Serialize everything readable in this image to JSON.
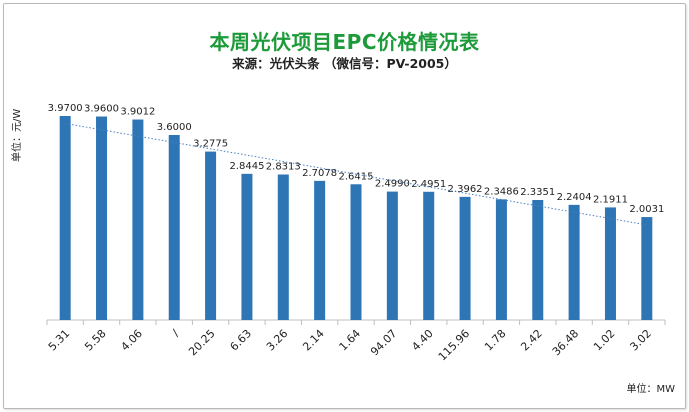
{
  "chart_data": {
    "type": "bar",
    "title": "本周光伏项目EPC价格情况表",
    "subtitle": "来源：光伏头条 （微信号：PV-2005）",
    "ylabel": "单位：元/W",
    "xunit": "单位：MW",
    "categories": [
      "5.31",
      "5.58",
      "4.06",
      "/",
      "20.25",
      "6.63",
      "3.26",
      "2.14",
      "1.64",
      "94.07",
      "4.40",
      "115.96",
      "1.78",
      "2.42",
      "36.48",
      "1.02",
      "3.02"
    ],
    "values": [
      3.97,
      3.96,
      3.9012,
      3.6,
      3.2775,
      2.8445,
      2.8313,
      2.7078,
      2.6415,
      2.499,
      2.4951,
      2.3962,
      2.3486,
      2.3351,
      2.2404,
      2.1911,
      2.0031
    ],
    "value_labels": [
      "3.9700",
      "3.9600",
      "3.9012",
      "3.6000",
      "3.2775",
      "2.8445",
      "2.8313",
      "2.7078",
      "2.6415",
      "2.4990",
      "2.4951",
      "2.3962",
      "2.3486",
      "2.3351",
      "2.2404",
      "2.1911",
      "2.0031"
    ],
    "trendline": "linear",
    "ylim": [
      0,
      4.5
    ],
    "grid": false,
    "legend": "none",
    "colors": {
      "bar": "#2e75b6",
      "trend": "#4a7fc1",
      "title": "#1d9a3a",
      "axis": "#bfbfbf"
    }
  }
}
